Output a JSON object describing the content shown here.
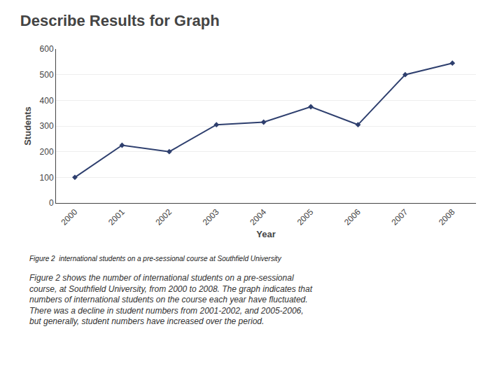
{
  "chart_data": {
    "type": "line",
    "title": "Describe Results for Graph",
    "x": [
      2000,
      2001,
      2002,
      2003,
      2004,
      2005,
      2006,
      2007,
      2008
    ],
    "values": [
      100,
      225,
      200,
      305,
      315,
      375,
      305,
      500,
      545
    ],
    "xlabel": "Year",
    "ylabel": "Students",
    "xlim": [
      1999.6,
      2008.5
    ],
    "xticks": [
      2000,
      2001,
      2002,
      2003,
      2004,
      2005,
      2006,
      2007,
      2008
    ],
    "ylim": [
      0,
      600
    ],
    "yticks": [
      0,
      100,
      200,
      300,
      400,
      500,
      600
    ],
    "color": "#2e3f6e",
    "marker": "diamond",
    "line_style": "solid",
    "grid": "y",
    "annotations": [
      "Figure 2  international students on a pre-sessional course at Southfield University",
      "Figure 2 shows the number of international students on a pre-sessional\ncourse, at Southfield University, from 2000 to 2008. The graph indicates that\nnumbers of international students on the course each year have fluctuated.\nThere was a decline in student numbers from 2001-2002, and 2005-2006,\nbut generally, student numbers have increased over the period."
    ]
  }
}
